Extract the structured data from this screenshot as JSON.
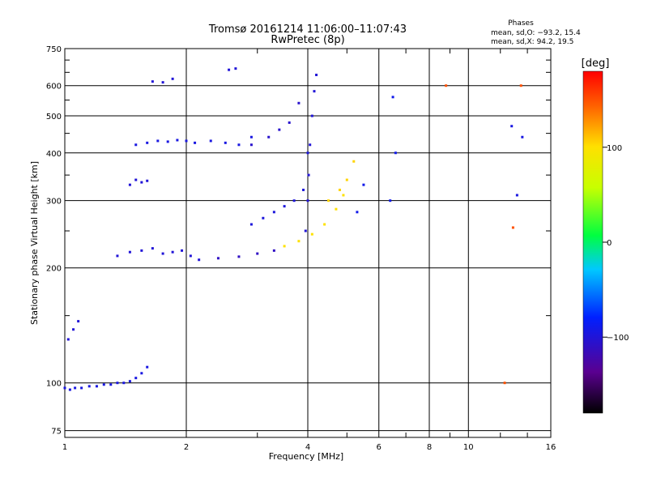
{
  "title_line1": "Tromsø 20161214 11:06:00–11:07:43",
  "title_line2": "RwPretec (8p)",
  "phases": {
    "heading": "Phases",
    "line_o": "mean, sd,O: −93.2, 15.4",
    "line_x": "mean, sd,X: 94.2, 19.5"
  },
  "colorbar": {
    "unit": "[deg]",
    "ticks": [
      {
        "label": "100",
        "value": 100
      },
      {
        "label": "0",
        "value": 0
      },
      {
        "label": "−100",
        "value": -100
      }
    ]
  },
  "chart_data": {
    "type": "scatter",
    "xlabel": "Frequency [MHz]",
    "ylabel": "Stationary phase Virtual Height [km]",
    "xscale": "log",
    "yscale": "log",
    "xlim": [
      1,
      16
    ],
    "ylim": [
      72,
      750
    ],
    "color_range": [
      -180,
      180
    ],
    "xticks": [
      {
        "label": "1",
        "value": 1
      },
      {
        "label": "2",
        "value": 2
      },
      {
        "label": "4",
        "value": 4
      },
      {
        "label": "6",
        "value": 6
      },
      {
        "label": "8",
        "value": 8
      },
      {
        "label": "10",
        "value": 10
      },
      {
        "label": "16",
        "value": 16
      }
    ],
    "yticks": [
      {
        "label": "75",
        "value": 75
      },
      {
        "label": "100",
        "value": 100
      },
      {
        "label": "200",
        "value": 200
      },
      {
        "label": "300",
        "value": 300
      },
      {
        "label": "400",
        "value": 400
      },
      {
        "label": "500",
        "value": 500
      },
      {
        "label": "600",
        "value": 600
      },
      {
        "label": "750",
        "value": 750
      }
    ],
    "minor_x": [
      3,
      5,
      7,
      9,
      12,
      14
    ],
    "minor_y": [
      150,
      250,
      350,
      450,
      550,
      650,
      700
    ],
    "grid": true,
    "series": [
      {
        "x": [
          1.0,
          1.03,
          1.06,
          1.1,
          1.15,
          1.2,
          1.25,
          1.3,
          1.35,
          1.4,
          1.45,
          1.5,
          1.55,
          1.6
        ],
        "y": [
          97,
          96,
          97,
          97,
          98,
          98,
          99,
          99,
          100,
          100,
          101,
          103,
          106,
          110
        ],
        "phase": -95
      },
      {
        "x": [
          1.02,
          1.05,
          1.08
        ],
        "y": [
          130,
          138,
          145
        ],
        "phase": -100
      },
      {
        "x": [
          1.35,
          1.45,
          1.55,
          1.65,
          1.75,
          1.85,
          1.95,
          2.05,
          2.15
        ],
        "y": [
          215,
          220,
          222,
          225,
          218,
          220,
          222,
          215,
          210
        ],
        "phase": -100
      },
      {
        "x": [
          1.5,
          1.6,
          1.7,
          1.8,
          1.9,
          2.0,
          2.1
        ],
        "y": [
          420,
          425,
          430,
          428,
          432,
          430,
          425
        ],
        "phase": -95
      },
      {
        "x": [
          1.45,
          1.5,
          1.55,
          1.6
        ],
        "y": [
          330,
          340,
          335,
          338
        ],
        "phase": -100
      },
      {
        "x": [
          1.65,
          1.75,
          1.85
        ],
        "y": [
          615,
          612,
          625
        ],
        "phase": -100
      },
      {
        "x": [
          2.3,
          2.5,
          2.7,
          2.9
        ],
        "y": [
          430,
          425,
          420,
          440
        ],
        "phase": -95
      },
      {
        "x": [
          2.55,
          2.65
        ],
        "y": [
          660,
          665
        ],
        "phase": -100
      },
      {
        "x": [
          2.4,
          2.7,
          3.0,
          3.3
        ],
        "y": [
          212,
          214,
          218,
          222
        ],
        "phase": -110
      },
      {
        "x": [
          2.9,
          3.2,
          3.4,
          3.6,
          3.8
        ],
        "y": [
          420,
          440,
          460,
          480,
          540
        ],
        "phase": -105
      },
      {
        "x": [
          2.9,
          3.1,
          3.3,
          3.5,
          3.7,
          3.9,
          4.0
        ],
        "y": [
          260,
          270,
          280,
          290,
          300,
          320,
          400
        ],
        "phase": -98
      },
      {
        "x": [
          3.95,
          4.0,
          4.02,
          4.05,
          4.1,
          4.15,
          4.2
        ],
        "y": [
          250,
          300,
          350,
          420,
          500,
          580,
          640
        ],
        "phase": -100
      },
      {
        "x": [
          3.5,
          3.8,
          4.1,
          4.4,
          4.7,
          4.9
        ],
        "y": [
          228,
          235,
          245,
          260,
          285,
          310
        ],
        "phase": 100
      },
      {
        "x": [
          4.5,
          4.8,
          5.0,
          5.2
        ],
        "y": [
          300,
          320,
          340,
          380
        ],
        "phase": 105
      },
      {
        "x": [
          5.3,
          5.5
        ],
        "y": [
          280,
          330
        ],
        "phase": -90
      },
      {
        "x": [
          6.4,
          6.5,
          6.6
        ],
        "y": [
          300,
          560,
          400
        ],
        "phase": -90
      },
      {
        "x": [
          12.8,
          13.2,
          13.6
        ],
        "y": [
          470,
          310,
          440
        ],
        "phase": -95
      },
      {
        "x": [
          8.8,
          12.3,
          12.9,
          13.5
        ],
        "y": [
          600,
          100,
          255,
          600
        ],
        "phase": 150
      }
    ]
  }
}
